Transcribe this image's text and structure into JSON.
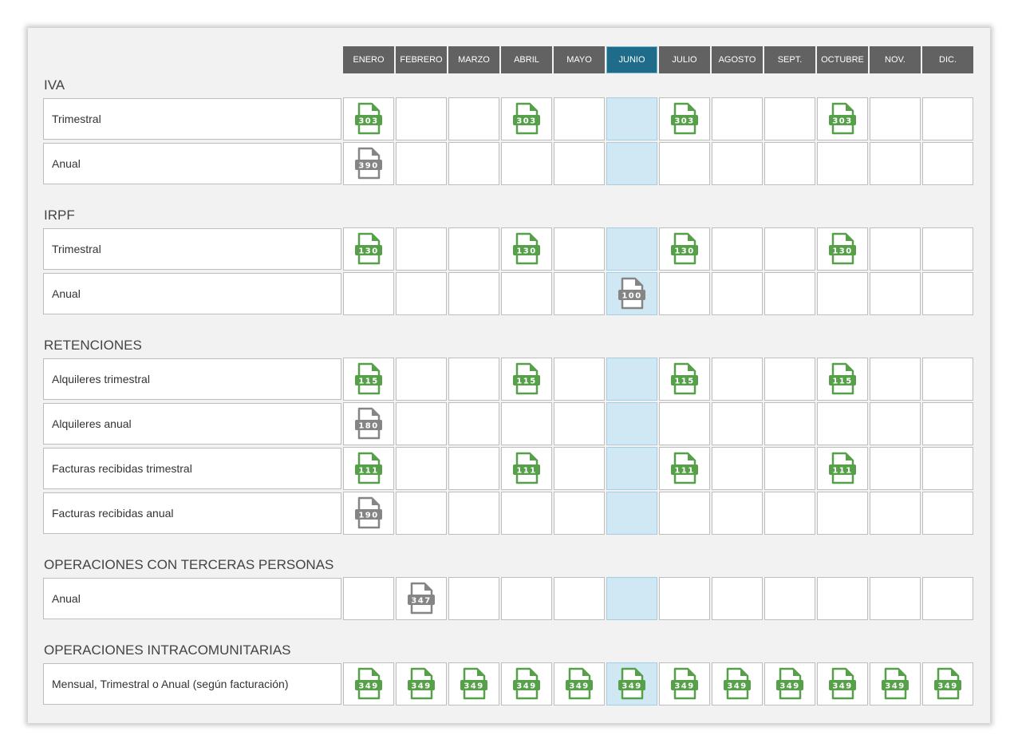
{
  "months": [
    "ENERO",
    "FEBRERO",
    "MARZO",
    "ABRIL",
    "MAYO",
    "JUNIO",
    "JULIO",
    "AGOSTO",
    "SEPT.",
    "OCTUBRE",
    "NOV.",
    "DIC."
  ],
  "current_month_index": 5,
  "colors": {
    "header_bg": "#626262",
    "current_month_header": "#1f6b8a",
    "current_month_cell": "#d0e8f3",
    "form_green": "#57a04a",
    "form_gray": "#858585"
  },
  "sections": [
    {
      "title": "IVA",
      "rows": [
        {
          "label": "Trimestral",
          "forms": [
            {
              "month": 0,
              "code": "303",
              "color": "green"
            },
            {
              "month": 3,
              "code": "303",
              "color": "green"
            },
            {
              "month": 6,
              "code": "303",
              "color": "green"
            },
            {
              "month": 9,
              "code": "303",
              "color": "green"
            }
          ]
        },
        {
          "label": "Anual",
          "forms": [
            {
              "month": 0,
              "code": "390",
              "color": "gray"
            }
          ]
        }
      ]
    },
    {
      "title": "IRPF",
      "rows": [
        {
          "label": "Trimestral",
          "forms": [
            {
              "month": 0,
              "code": "130",
              "color": "green"
            },
            {
              "month": 3,
              "code": "130",
              "color": "green"
            },
            {
              "month": 6,
              "code": "130",
              "color": "green"
            },
            {
              "month": 9,
              "code": "130",
              "color": "green"
            }
          ]
        },
        {
          "label": "Anual",
          "forms": [
            {
              "month": 5,
              "code": "100",
              "color": "gray"
            }
          ]
        }
      ]
    },
    {
      "title": "RETENCIONES",
      "rows": [
        {
          "label": "Alquileres trimestral",
          "forms": [
            {
              "month": 0,
              "code": "115",
              "color": "green"
            },
            {
              "month": 3,
              "code": "115",
              "color": "green"
            },
            {
              "month": 6,
              "code": "115",
              "color": "green"
            },
            {
              "month": 9,
              "code": "115",
              "color": "green"
            }
          ]
        },
        {
          "label": "Alquileres anual",
          "forms": [
            {
              "month": 0,
              "code": "180",
              "color": "gray"
            }
          ]
        },
        {
          "label": "Facturas recibidas trimestral",
          "forms": [
            {
              "month": 0,
              "code": "111",
              "color": "green"
            },
            {
              "month": 3,
              "code": "111",
              "color": "green"
            },
            {
              "month": 6,
              "code": "111",
              "color": "green"
            },
            {
              "month": 9,
              "code": "111",
              "color": "green"
            }
          ]
        },
        {
          "label": "Facturas recibidas anual",
          "forms": [
            {
              "month": 0,
              "code": "190",
              "color": "gray"
            }
          ]
        }
      ]
    },
    {
      "title": "OPERACIONES CON TERCERAS PERSONAS",
      "rows": [
        {
          "label": "Anual",
          "forms": [
            {
              "month": 1,
              "code": "347",
              "color": "gray"
            }
          ]
        }
      ]
    },
    {
      "title": "OPERACIONES INTRACOMUNITARIAS",
      "rows": [
        {
          "label": "Mensual, Trimestral o Anual (según facturación)",
          "forms": [
            {
              "month": 0,
              "code": "349",
              "color": "green"
            },
            {
              "month": 1,
              "code": "349",
              "color": "green"
            },
            {
              "month": 2,
              "code": "349",
              "color": "green"
            },
            {
              "month": 3,
              "code": "349",
              "color": "green"
            },
            {
              "month": 4,
              "code": "349",
              "color": "green"
            },
            {
              "month": 5,
              "code": "349",
              "color": "green"
            },
            {
              "month": 6,
              "code": "349",
              "color": "green"
            },
            {
              "month": 7,
              "code": "349",
              "color": "green"
            },
            {
              "month": 8,
              "code": "349",
              "color": "green"
            },
            {
              "month": 9,
              "code": "349",
              "color": "green"
            },
            {
              "month": 10,
              "code": "349",
              "color": "green"
            },
            {
              "month": 11,
              "code": "349",
              "color": "green"
            }
          ]
        }
      ]
    }
  ]
}
